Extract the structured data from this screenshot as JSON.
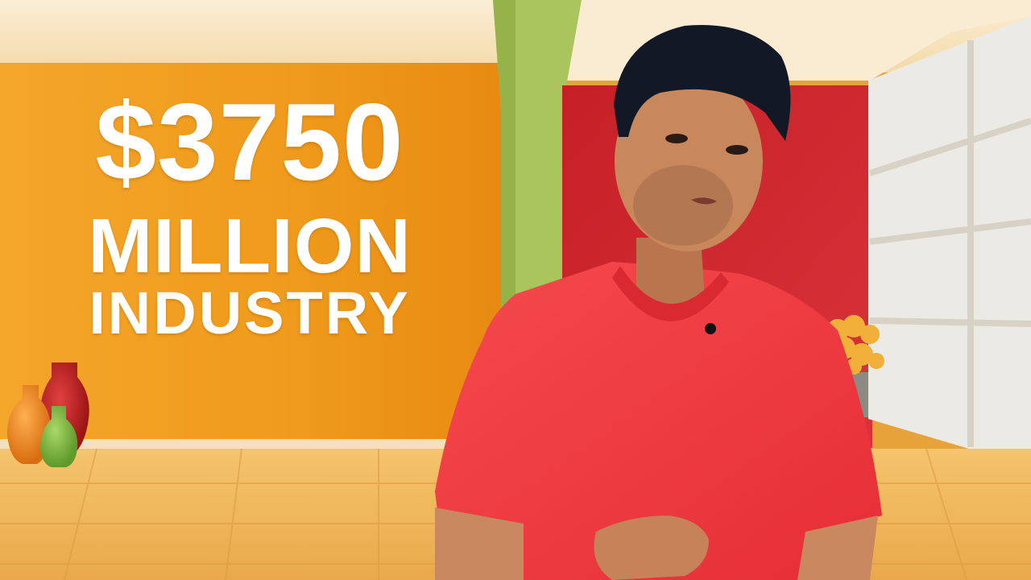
{
  "headline": {
    "amount": "$3750",
    "unit": "MILLION",
    "subject": "INDUSTRY"
  },
  "palette": {
    "orange_wall": "#f09a1a",
    "green_pillar": "#a8c45a",
    "red_wall": "#c8262b",
    "floor": "#f0b75a",
    "shirt": "#f1383e",
    "ceiling": "#f7e6c4"
  }
}
